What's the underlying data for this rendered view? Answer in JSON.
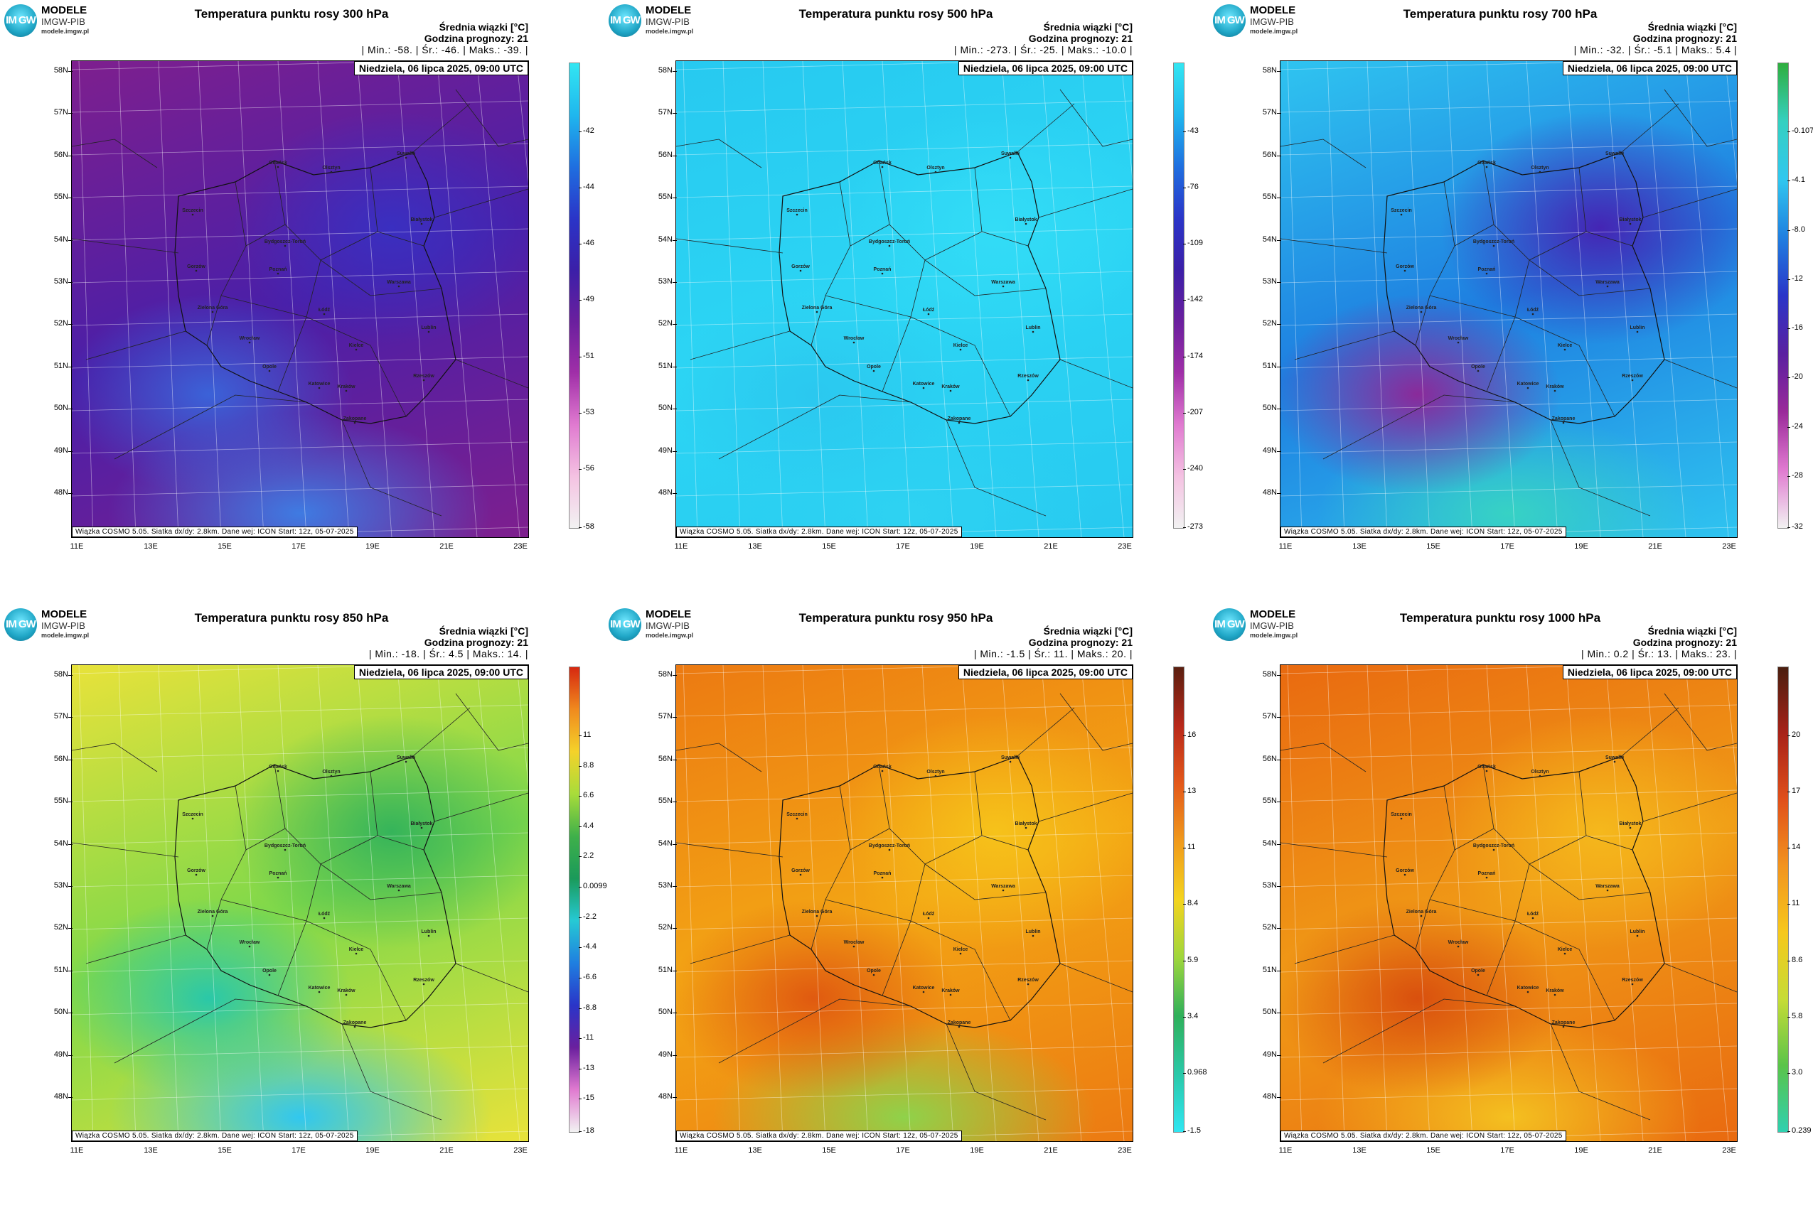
{
  "logo": {
    "badge": "IM GW",
    "line1": "MODELE",
    "line2": "IMGW-PIB",
    "line3": "modele.imgw.pl"
  },
  "common": {
    "meta_line1": "Średnia wiązki [°C]",
    "meta_line2": "Godzina prognozy: 21",
    "date": "Niedziela, 06 lipca 2025, 09:00 UTC",
    "source": "Wiązka COSMO 5.05. Siatka dx/dy: 2.8km. Dane wej: ICON Start: 12z, 05-07-2025",
    "lat_labels": [
      "58N",
      "57N",
      "56N",
      "55N",
      "54N",
      "53N",
      "52N",
      "51N",
      "50N",
      "49N",
      "48N"
    ],
    "lon_labels": [
      "11E",
      "13E",
      "15E",
      "17E",
      "19E",
      "21E",
      "23E"
    ],
    "cities": [
      "Gdańsk",
      "Olsztyn",
      "Suwałki",
      "Białystok",
      "Szczecin",
      "Bydgoszcz-Toruń",
      "Gorzów",
      "Poznań",
      "Warszawa",
      "Zielona Góra",
      "Łódź",
      "Lublin",
      "Wrocław",
      "Kielce",
      "Opole",
      "Katowice",
      "Kraków",
      "Rzeszów",
      "Zakopane"
    ]
  },
  "panels": [
    {
      "title": "Temperatura punktu rosy 300 hPa",
      "stats": "| Min.:   -58. | Śr.:   -46. | Maks.:   -39. |",
      "colorbar_labels": [
        "-42",
        "-44",
        "-46",
        "-49",
        "-51",
        "-53",
        "-56",
        "-58"
      ],
      "palette": [
        "#7e1f8e",
        "#4a1fa8",
        "#3a2fc0",
        "#3b62d8",
        "#3f7be2"
      ]
    },
    {
      "title": "Temperatura punktu rosy 500 hPa",
      "stats": "| Min.:   -273. | Śr.:   -25. | Maks.:   -10.0 |",
      "colorbar_labels": [
        "-43",
        "-76",
        "-109",
        "-142",
        "-174",
        "-207",
        "-240",
        "-273"
      ],
      "palette": [
        "#27c9f0",
        "#2cd5f4",
        "#33dcf6",
        "#2bc8ef",
        "#2ed2f2"
      ]
    },
    {
      "title": "Temperatura punktu rosy 700 hPa",
      "stats": "| Min.:   -32. | Śr.:   -5.1 | Maks.:   5.4 |",
      "colorbar_labels": [
        "-0.107",
        "-4.1",
        "-8.0",
        "-12",
        "-16",
        "-20",
        "-24",
        "-28",
        "-32"
      ],
      "palette": [
        "#2fc4f0",
        "#1e7ee0",
        "#4425b4",
        "#8a2a9a",
        "#37d2c4"
      ]
    },
    {
      "title": "Temperatura punktu rosy 850 hPa",
      "stats": "| Min.:   -18. | Śr.:   4.5 | Maks.:   14. |",
      "colorbar_labels": [
        "11",
        "8.8",
        "6.6",
        "4.4",
        "2.2",
        "0.0099",
        "-2.2",
        "-4.4",
        "-6.6",
        "-8.8",
        "-11",
        "-13",
        "-15",
        "-18"
      ],
      "palette": [
        "#e8e23a",
        "#7fd84a",
        "#35b45a",
        "#2ac8a8",
        "#31c7ef"
      ]
    },
    {
      "title": "Temperatura punktu rosy 950 hPa",
      "stats": "| Min.:   -1.5 | Śr.:   11. | Maks.:   20. |",
      "colorbar_labels": [
        "16",
        "13",
        "11",
        "8.4",
        "5.9",
        "3.4",
        "0.968",
        "-1.5"
      ],
      "palette": [
        "#ec7a12",
        "#f3a514",
        "#f6c21a",
        "#e05a10",
        "#8fd24a"
      ]
    },
    {
      "title": "Temperatura punktu rosy 1000 hPa",
      "stats": "| Min.:   0.2 | Śr.:   13. | Maks.:   23. |",
      "colorbar_labels": [
        "20",
        "17",
        "14",
        "11",
        "8.6",
        "5.8",
        "3.0",
        "0.239"
      ],
      "palette": [
        "#e96a10",
        "#f09a16",
        "#f5b81c",
        "#d9500e",
        "#f4c020"
      ]
    }
  ],
  "colorbars": {
    "cool": [
      "#33e6f2",
      "#1fb7ee",
      "#1f6fe0",
      "#2a35c8",
      "#3b1fa8",
      "#6a1f9e",
      "#a02fa8",
      "#e07ad0",
      "#f4c2e2",
      "#f2f2f2"
    ],
    "cool2": [
      "#2fae3e",
      "#35d0c0",
      "#31c7ef",
      "#1f7fe0",
      "#2a35c8",
      "#5a20a0",
      "#9a2a9a",
      "#e07ad0",
      "#f2f2f2"
    ],
    "mixed": [
      "#d62810",
      "#f08a1e",
      "#f4d22a",
      "#a8dc3a",
      "#3fb04a",
      "#1a9a5a",
      "#26c9d4",
      "#1f7fe0",
      "#2a35c8",
      "#6a1f9e",
      "#e07ad0",
      "#f2f2f2"
    ],
    "warm": [
      "#5a1f10",
      "#b8281a",
      "#e3581a",
      "#f09a1c",
      "#f4d41e",
      "#9fd63c",
      "#2fb05a",
      "#2ac8a8",
      "#2fe6f2"
    ],
    "warm2": [
      "#4a1f10",
      "#a82218",
      "#e0501a",
      "#f2941e",
      "#f6c81c",
      "#c6dc36",
      "#5ac44a",
      "#2fd0b0"
    ]
  }
}
